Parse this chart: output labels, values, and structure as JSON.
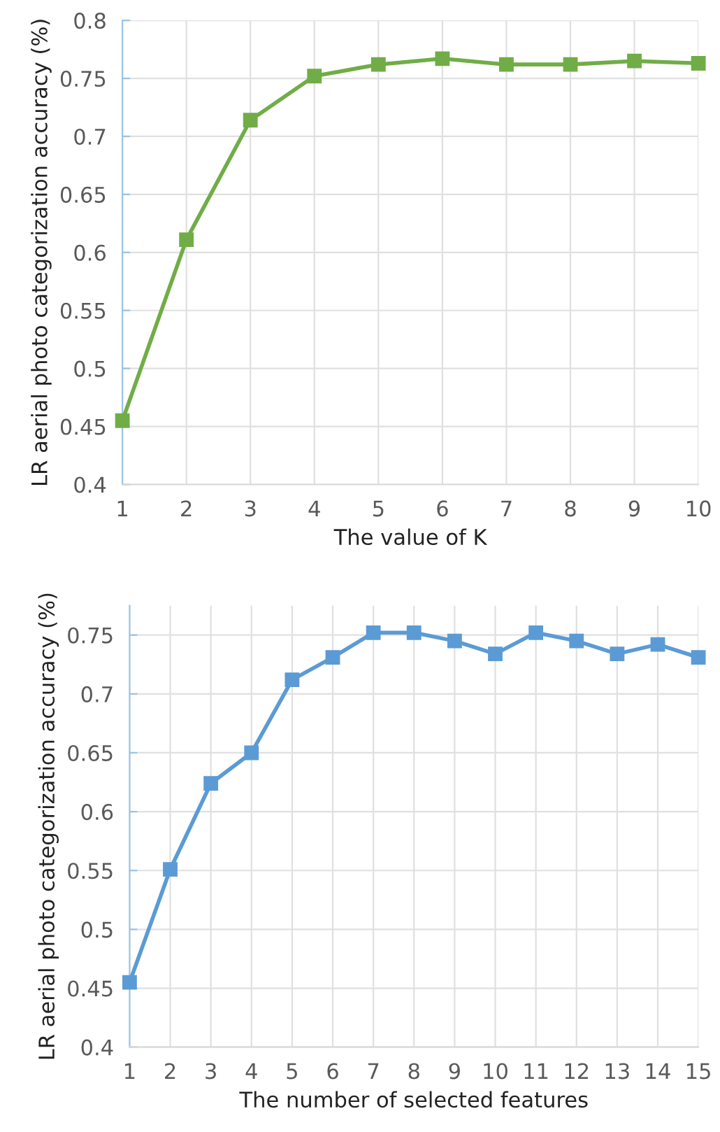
{
  "chart_data": [
    {
      "type": "line",
      "xlabel": "The value of K",
      "ylabel": "LR aerial photo categorization accuracy (%)",
      "categories": [
        "1",
        "2",
        "3",
        "4",
        "5",
        "6",
        "7",
        "8",
        "9",
        "10"
      ],
      "series": [
        {
          "color": "#70ad47",
          "values": [
            0.455,
            0.611,
            0.714,
            0.752,
            0.762,
            0.767,
            0.762,
            0.762,
            0.765,
            0.763
          ]
        }
      ],
      "ylim": [
        0.4,
        0.8
      ],
      "yticks": [
        {
          "value": 0.4,
          "label": "0.4"
        },
        {
          "value": 0.45,
          "label": "0.45"
        },
        {
          "value": 0.5,
          "label": "0.5"
        },
        {
          "value": 0.55,
          "label": "0.55"
        },
        {
          "value": 0.6,
          "label": "0.6"
        },
        {
          "value": 0.65,
          "label": "0.65"
        },
        {
          "value": 0.7,
          "label": "0.7"
        },
        {
          "value": 0.75,
          "label": "0.75"
        },
        {
          "value": 0.8,
          "label": "0.8"
        }
      ],
      "grid": true,
      "marker": "square",
      "line_style": "solid"
    },
    {
      "type": "line",
      "xlabel": "The number of selected features",
      "ylabel": "LR aerial photo categorization accuracy (%)",
      "categories": [
        "1",
        "2",
        "3",
        "4",
        "5",
        "6",
        "7",
        "8",
        "9",
        "10",
        "11",
        "12",
        "13",
        "14",
        "15"
      ],
      "series": [
        {
          "color": "#5b9bd5",
          "values": [
            0.455,
            0.551,
            0.624,
            0.65,
            0.712,
            0.731,
            0.752,
            0.752,
            0.745,
            0.734,
            0.752,
            0.745,
            0.734,
            0.742,
            0.731
          ]
        }
      ],
      "ylim": [
        0.4,
        0.775
      ],
      "yticks": [
        {
          "value": 0.4,
          "label": "0.4"
        },
        {
          "value": 0.45,
          "label": "0.45"
        },
        {
          "value": 0.5,
          "label": "0.5"
        },
        {
          "value": 0.55,
          "label": "0.55"
        },
        {
          "value": 0.6,
          "label": "0.6"
        },
        {
          "value": 0.65,
          "label": "0.65"
        },
        {
          "value": 0.7,
          "label": "0.7"
        },
        {
          "value": 0.75,
          "label": "0.75"
        }
      ],
      "grid": true,
      "marker": "square",
      "line_style": "solid"
    }
  ]
}
